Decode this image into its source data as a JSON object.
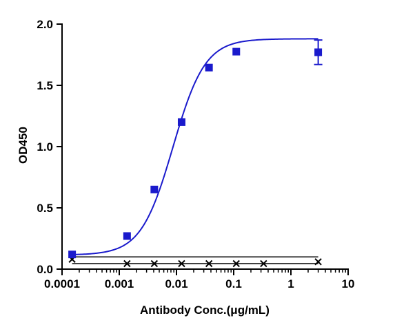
{
  "chart_data": {
    "type": "scatter",
    "title": "",
    "xlabel": "Antibody Conc.(μg/mL)",
    "ylabel": "OD450",
    "xscale": "log",
    "xlim": [
      0.0001,
      10
    ],
    "ylim": [
      0,
      2.0
    ],
    "x_ticks": [
      0.0001,
      0.001,
      0.01,
      0.1,
      1,
      10
    ],
    "x_tick_labels": [
      "0.0001",
      "0.001",
      "0.01",
      "0.1",
      "1",
      "10"
    ],
    "y_ticks": [
      0,
      0.5,
      1.0,
      1.5,
      2.0
    ],
    "y_tick_labels": [
      "0.0",
      "0.5",
      "1.0",
      "1.5",
      "2.0"
    ],
    "grid": false,
    "legend": "none",
    "series": [
      {
        "marker": "square",
        "color": "#1a1acc",
        "points": [
          {
            "x": 0.00015,
            "y": 0.12,
            "err": 0
          },
          {
            "x": 0.00137,
            "y": 0.27,
            "err": 0
          },
          {
            "x": 0.0041,
            "y": 0.65,
            "err": 0
          },
          {
            "x": 0.0123,
            "y": 1.2,
            "err": 0
          },
          {
            "x": 0.037,
            "y": 1.645,
            "err": 0
          },
          {
            "x": 0.111,
            "y": 1.775,
            "err": 0
          },
          {
            "x": 3.0,
            "y": 1.77,
            "err": 0.1
          }
        ],
        "fit": {
          "bottom": 0.115,
          "top": 1.88,
          "ec50": 0.0087,
          "hill": 1.55
        }
      },
      {
        "marker": "x",
        "color": "#000000",
        "points": [
          {
            "x": 0.00015,
            "y": 0.08
          },
          {
            "x": 0.00137,
            "y": 0.045
          },
          {
            "x": 0.0041,
            "y": 0.045
          },
          {
            "x": 0.0123,
            "y": 0.045
          },
          {
            "x": 0.037,
            "y": 0.045
          },
          {
            "x": 0.111,
            "y": 0.045
          },
          {
            "x": 0.333,
            "y": 0.045
          },
          {
            "x": 3.0,
            "y": 0.06
          }
        ],
        "lines": [
          {
            "x": [
              0.00015,
              3.0
            ],
            "y": [
              0.1,
              0.1
            ]
          },
          {
            "x": [
              0.00015,
              3.0
            ],
            "y": [
              0.045,
              0.045
            ]
          }
        ]
      }
    ]
  }
}
